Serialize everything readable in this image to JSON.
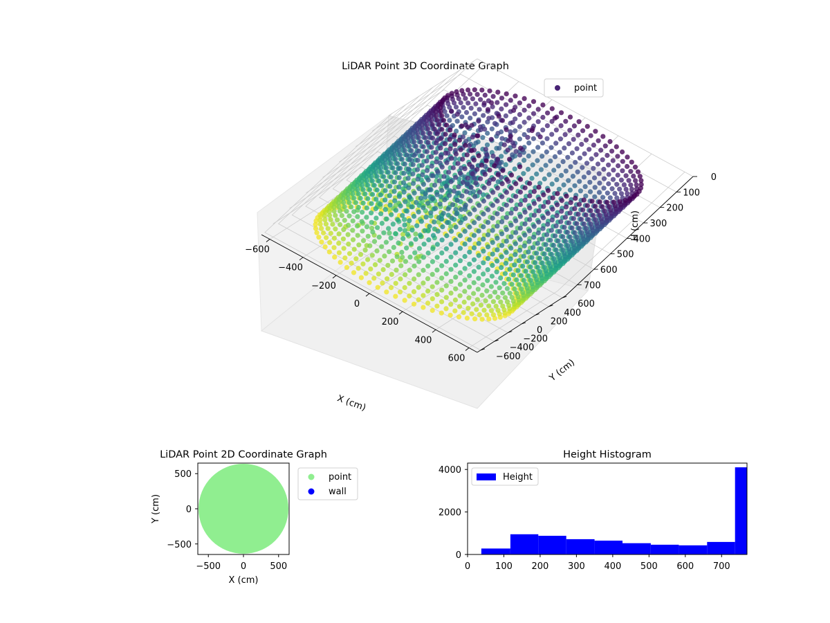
{
  "chart_data": [
    {
      "type": "scatter",
      "title": "LiDAR Point 3D Coordinate Graph",
      "xlabel": "X (cm)",
      "ylabel": "Y (cm)",
      "zlabel": "H (cm)",
      "xlim": [
        -650,
        650
      ],
      "ylim": [
        -650,
        650
      ],
      "zlim": [
        770,
        0
      ],
      "x_ticks": [
        -600,
        -400,
        -200,
        0,
        200,
        400,
        600
      ],
      "y_ticks": [
        -600,
        -400,
        -200,
        0,
        200,
        400,
        600
      ],
      "z_ticks": [
        0,
        100,
        200,
        300,
        400,
        500,
        600,
        700
      ],
      "legend": {
        "label": "point",
        "position": "upper-right"
      },
      "colormap": "viridis",
      "grid": true,
      "series": [
        {
          "name": "point",
          "shape": "cylindrical wall",
          "radius": 560,
          "height_range": [
            0,
            770
          ]
        }
      ]
    },
    {
      "type": "scatter",
      "title": "LiDAR Point 2D Coordinate Graph",
      "xlabel": "X (cm)",
      "ylabel": "Y (cm)",
      "xlim": [
        -650,
        650
      ],
      "ylim": [
        -650,
        650
      ],
      "x_ticks": [
        -500,
        0,
        500
      ],
      "y_ticks": [
        -500,
        0,
        500
      ],
      "legend": {
        "position": "outside-right"
      },
      "series": [
        {
          "name": "point",
          "color": "#90ee90",
          "shape": "filled disc",
          "radius": 640,
          "center": [
            0,
            0
          ]
        },
        {
          "name": "wall",
          "color": "#0000ff",
          "points": []
        }
      ]
    },
    {
      "type": "bar",
      "title": "Height Histogram",
      "xlabel": "",
      "ylabel": "",
      "xlim": [
        0,
        770
      ],
      "ylim": [
        0,
        4300
      ],
      "x_ticks": [
        0,
        100,
        200,
        300,
        400,
        500,
        600,
        700
      ],
      "y_ticks": [
        0,
        2000,
        4000
      ],
      "legend": {
        "label": "Height",
        "position": "upper-left"
      },
      "color": "#0000ff",
      "bin_edges": [
        38,
        118,
        195,
        272,
        350,
        427,
        505,
        582,
        660,
        737,
        770
      ],
      "values": [
        280,
        950,
        880,
        720,
        650,
        530,
        460,
        430,
        590,
        4100
      ]
    }
  ]
}
